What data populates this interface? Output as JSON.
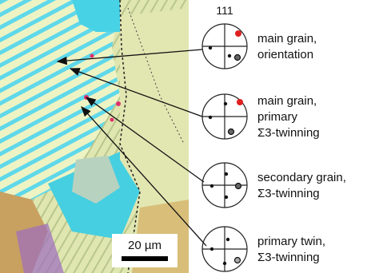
{
  "figure": {
    "pole_label": "111",
    "labels": [
      [
        "main grain,",
        "orientation"
      ],
      [
        "main grain,",
        "primary",
        "Σ3-twinning"
      ],
      [
        "secondary grain,",
        "Σ3-twinning"
      ],
      [
        "primary twin,",
        "Σ3-twinning"
      ]
    ],
    "scale_bar": "20 µm"
  }
}
